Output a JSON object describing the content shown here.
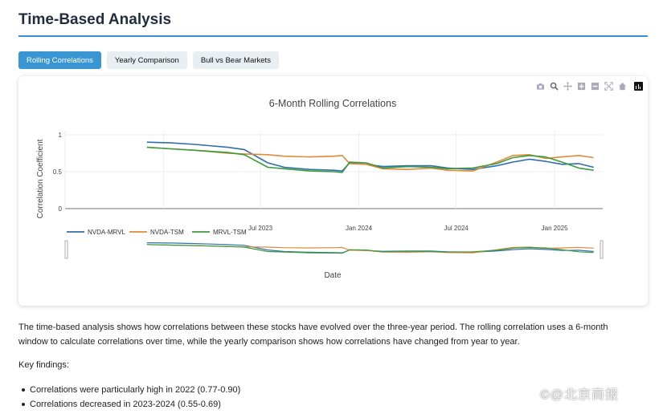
{
  "page": {
    "title": "Time-Based Analysis"
  },
  "tabs": [
    {
      "label": "Rolling Correlations",
      "active": true
    },
    {
      "label": "Yearly Comparison",
      "active": false
    },
    {
      "label": "Bull vs Bear Markets",
      "active": false
    }
  ],
  "modebar": {
    "icons": [
      "camera-icon",
      "zoom-icon",
      "pan-icon",
      "zoom-in-icon",
      "zoom-out-icon",
      "autoscale-icon",
      "reset-axes-icon",
      "plotly-logo-icon"
    ]
  },
  "colors": {
    "accent": "#3a95d3",
    "NVDA-MRVL": "#2f6fad",
    "NVDA-TSM": "#e08a3a",
    "MRVL-TSM": "#3c9b3c"
  },
  "chart_data": {
    "type": "line",
    "title": "6-Month Rolling Correlations",
    "xlabel": "Date",
    "ylabel": "Correlation Coefficient",
    "ylim": [
      0,
      1
    ],
    "y_ticks": [
      "1",
      "0.5",
      "0"
    ],
    "x_ticks": [
      "Jul 2023",
      "Jan 2024",
      "Jul 2024",
      "Jan 2025"
    ],
    "xlim": [
      "2022-07-01",
      "2025-04-01"
    ],
    "grid": true,
    "legend": "bottom-left, horizontal",
    "range_slider": true,
    "series": [
      {
        "name": "NVDA-MRVL",
        "x": [
          "2022-12-01",
          "2023-01-15",
          "2023-03-01",
          "2023-05-01",
          "2023-06-01",
          "2023-07-15",
          "2023-08-15",
          "2023-10-01",
          "2023-11-15",
          "2023-12-01",
          "2023-12-15",
          "2024-01-15",
          "2024-02-15",
          "2024-04-01",
          "2024-05-15",
          "2024-06-15",
          "2024-08-01",
          "2024-09-15",
          "2024-10-15",
          "2024-11-15",
          "2024-12-15",
          "2025-01-15",
          "2025-02-15",
          "2025-03-15"
        ],
        "values": [
          0.9,
          0.89,
          0.87,
          0.83,
          0.8,
          0.62,
          0.56,
          0.53,
          0.52,
          0.51,
          0.62,
          0.6,
          0.57,
          0.58,
          0.58,
          0.55,
          0.53,
          0.58,
          0.63,
          0.67,
          0.64,
          0.6,
          0.61,
          0.56
        ]
      },
      {
        "name": "NVDA-TSM",
        "x": [
          "2022-12-01",
          "2023-01-15",
          "2023-03-01",
          "2023-05-01",
          "2023-06-01",
          "2023-07-15",
          "2023-08-15",
          "2023-10-01",
          "2023-11-15",
          "2023-12-01",
          "2023-12-15",
          "2024-01-15",
          "2024-02-15",
          "2024-04-01",
          "2024-05-15",
          "2024-06-15",
          "2024-08-01",
          "2024-09-15",
          "2024-10-15",
          "2024-11-15",
          "2024-12-15",
          "2025-01-15",
          "2025-02-15",
          "2025-03-15"
        ],
        "values": [
          0.83,
          0.81,
          0.79,
          0.75,
          0.74,
          0.73,
          0.71,
          0.7,
          0.71,
          0.72,
          0.61,
          0.6,
          0.54,
          0.53,
          0.55,
          0.52,
          0.51,
          0.63,
          0.72,
          0.73,
          0.68,
          0.7,
          0.72,
          0.69
        ]
      },
      {
        "name": "MRVL-TSM",
        "x": [
          "2022-12-01",
          "2023-01-15",
          "2023-03-01",
          "2023-05-01",
          "2023-06-01",
          "2023-07-15",
          "2023-08-15",
          "2023-10-01",
          "2023-11-15",
          "2023-12-01",
          "2023-12-15",
          "2024-01-15",
          "2024-02-15",
          "2024-04-01",
          "2024-05-15",
          "2024-06-15",
          "2024-08-01",
          "2024-09-15",
          "2024-10-15",
          "2024-11-15",
          "2024-12-15",
          "2025-01-15",
          "2025-02-15",
          "2025-03-15"
        ],
        "values": [
          0.83,
          0.81,
          0.79,
          0.76,
          0.73,
          0.56,
          0.54,
          0.51,
          0.5,
          0.49,
          0.63,
          0.62,
          0.55,
          0.57,
          0.56,
          0.54,
          0.55,
          0.61,
          0.69,
          0.72,
          0.7,
          0.63,
          0.55,
          0.52
        ]
      }
    ]
  },
  "description": "The time-based analysis shows how correlations between these stocks have evolved over the three-year period. The rolling correlation uses a 6-month window to calculate correlations over time, while the yearly comparison shows how correlations have changed from year to year.",
  "key_findings_label": "Key findings:",
  "findings": [
    "Correlations were particularly high in 2022 (0.77-0.90)",
    "Correlations decreased in 2023-2024 (0.55-0.69)"
  ],
  "watermark": "©@北京商报"
}
